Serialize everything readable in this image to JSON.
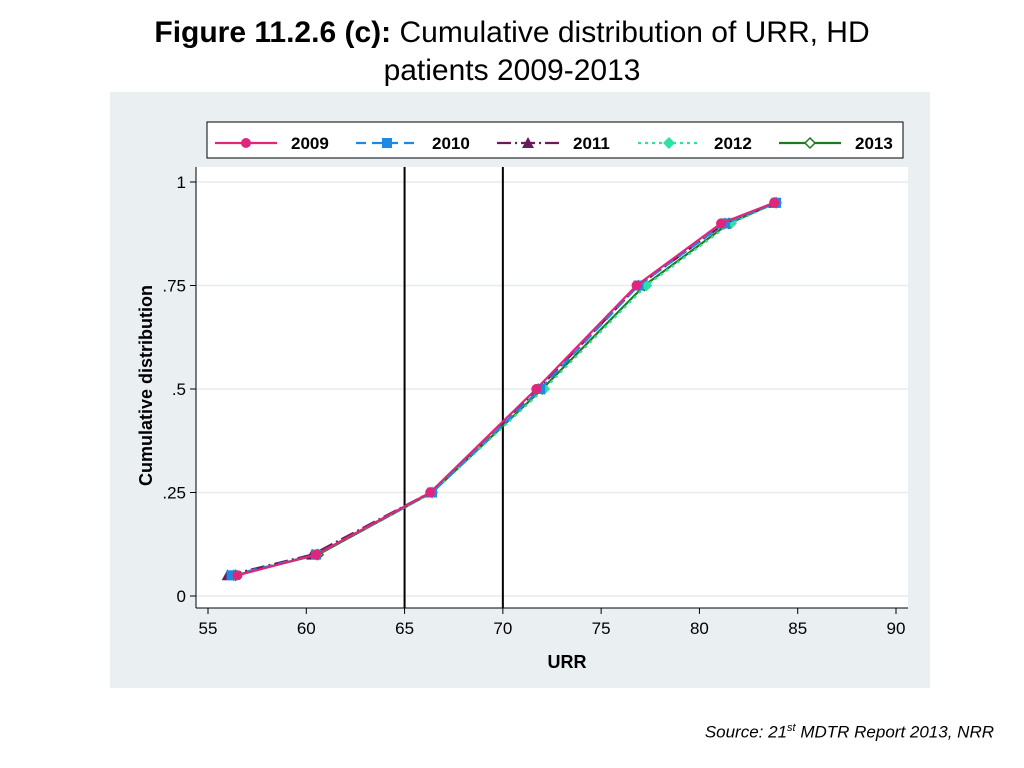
{
  "title": {
    "bold": "Figure 11.2.6 (c):",
    "normal": "Cumulative distribution of URR, HD",
    "line2": "patients 2009-2013"
  },
  "source": {
    "prefix": "Source: 21",
    "sup": "st",
    "suffix": " MDTR Report 2013, NRR"
  },
  "chart_data": {
    "type": "line",
    "title": "Figure 11.2.6 (c): Cumulative distribution of URR, HD patients 2009-2013",
    "xlabel": "URR",
    "ylabel": "Cumulative distribution",
    "xlim": [
      55,
      90
    ],
    "ylim": [
      0,
      1
    ],
    "xticks": [
      55,
      60,
      65,
      70,
      75,
      80,
      85,
      90
    ],
    "xtick_labels": [
      "55",
      "60",
      "65",
      "70",
      "75",
      "80",
      "85",
      "90"
    ],
    "yticks": [
      0,
      0.25,
      0.5,
      0.75,
      1
    ],
    "ytick_labels": [
      "0",
      ".25",
      ".5",
      ".75",
      "1"
    ],
    "grid": true,
    "legend_position": "top",
    "reference_lines_x": [
      65,
      70
    ],
    "series": [
      {
        "name": "2009",
        "color": "#e0267a",
        "dash": "",
        "marker": "circle",
        "points": [
          [
            56.5,
            0.05
          ],
          [
            60.5,
            0.1
          ],
          [
            66.3,
            0.25
          ],
          [
            71.7,
            0.5
          ],
          [
            76.8,
            0.75
          ],
          [
            81.1,
            0.9
          ],
          [
            83.8,
            0.95
          ]
        ]
      },
      {
        "name": "2010",
        "color": "#1e88e5",
        "dash": "10,6",
        "marker": "square",
        "points": [
          [
            56.2,
            0.05
          ],
          [
            60.5,
            0.1
          ],
          [
            66.4,
            0.25
          ],
          [
            71.9,
            0.5
          ],
          [
            76.9,
            0.75
          ],
          [
            81.3,
            0.9
          ],
          [
            83.9,
            0.95
          ]
        ]
      },
      {
        "name": "2011",
        "color": "#6a1b5e",
        "dash": "14,4,2,4",
        "marker": "triangle",
        "points": [
          [
            56.0,
            0.05
          ],
          [
            60.3,
            0.1
          ],
          [
            66.3,
            0.25
          ],
          [
            71.8,
            0.5
          ],
          [
            76.9,
            0.75
          ],
          [
            81.3,
            0.9
          ],
          [
            83.8,
            0.95
          ]
        ]
      },
      {
        "name": "2012",
        "color": "#2de0a6",
        "dash": "3,4",
        "marker": "diamond",
        "points": [
          [
            56.3,
            0.05
          ],
          [
            60.5,
            0.1
          ],
          [
            66.4,
            0.25
          ],
          [
            72.1,
            0.5
          ],
          [
            77.3,
            0.75
          ],
          [
            81.6,
            0.9
          ],
          [
            83.9,
            0.95
          ]
        ]
      },
      {
        "name": "2013",
        "color": "#1f7a1f",
        "dash": "",
        "marker": "diamond-hollow",
        "points": [
          [
            56.4,
            0.05
          ],
          [
            60.6,
            0.1
          ],
          [
            66.4,
            0.25
          ],
          [
            72.0,
            0.5
          ],
          [
            77.2,
            0.75
          ],
          [
            81.5,
            0.9
          ],
          [
            83.9,
            0.95
          ]
        ]
      }
    ]
  }
}
